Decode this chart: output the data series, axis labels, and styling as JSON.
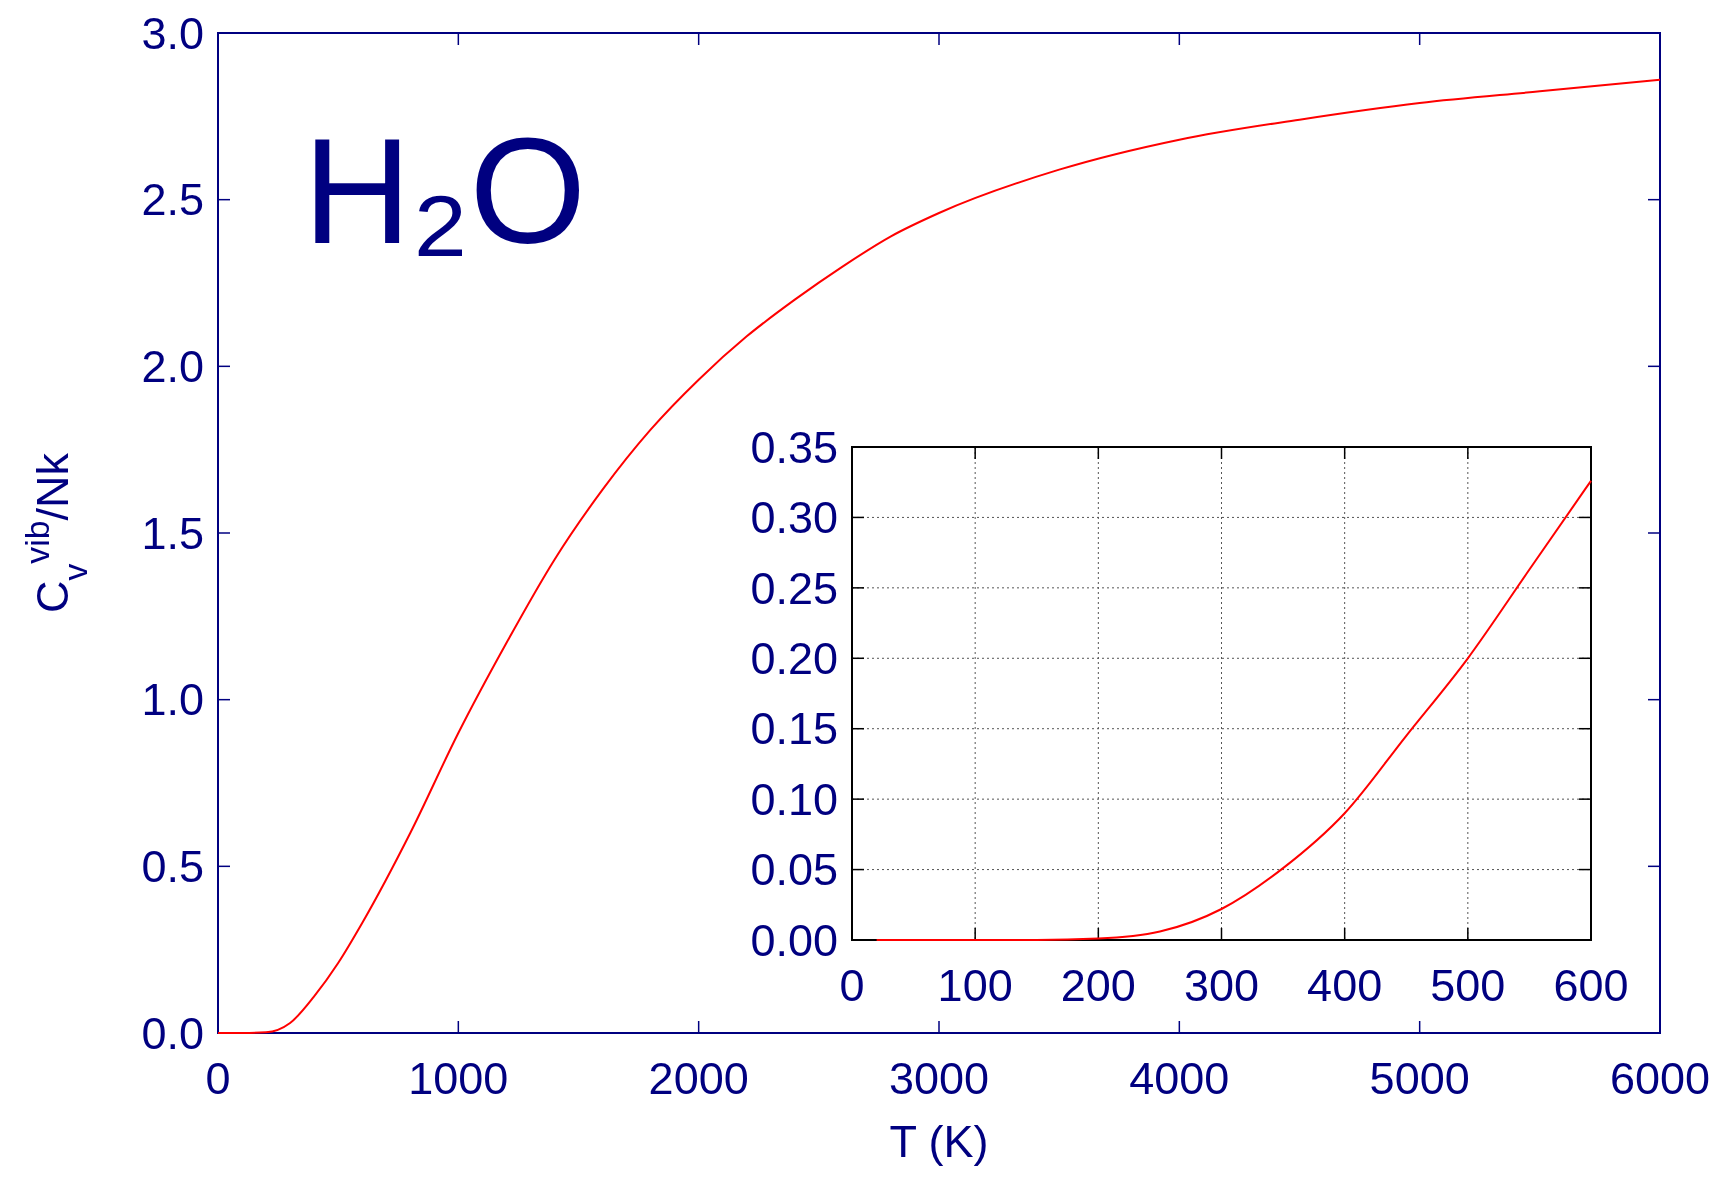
{
  "chart_data": [
    {
      "type": "line",
      "xlabel": "T (K)",
      "ylabel": "C$_{v}$$^{vib}$/Nk",
      "annotations": [
        "H₂O"
      ],
      "xlim": [
        0,
        6000
      ],
      "xticks": [
        0,
        1000,
        2000,
        3000,
        4000,
        5000,
        6000
      ],
      "ylim": [
        0,
        3
      ],
      "yticks": [
        {
          "value": 0,
          "label": "0.0"
        },
        {
          "value": 0.5,
          "label": "0.5"
        },
        {
          "value": 1,
          "label": "1.0"
        },
        {
          "value": 1.5,
          "label": "1.5"
        },
        {
          "value": 2,
          "label": "2.0"
        },
        {
          "value": 2.5,
          "label": "2.5"
        },
        {
          "value": 3,
          "label": "3.0"
        }
      ],
      "grid": false,
      "series": [
        {
          "color": "#ff0000",
          "x": [
            0,
            100,
            200,
            300,
            400,
            500,
            600,
            800,
            1000,
            1200,
            1400,
            1600,
            1800,
            2000,
            2200,
            2400,
            2600,
            2800,
            3000,
            3500,
            4000,
            4500,
            5000,
            5500,
            6000
          ],
          "values": [
            0,
            0,
            0.002,
            0.03,
            0.11,
            0.21,
            0.33,
            0.6,
            0.9,
            1.17,
            1.42,
            1.63,
            1.81,
            1.96,
            2.09,
            2.2,
            2.3,
            2.39,
            2.46,
            2.59,
            2.68,
            2.74,
            2.79,
            2.825,
            2.86
          ]
        }
      ]
    },
    {
      "type": "line",
      "xlim": [
        0,
        600
      ],
      "xticks": [
        0,
        100,
        200,
        300,
        400,
        500,
        600
      ],
      "ylim": [
        0,
        0.35
      ],
      "yticks": [
        {
          "value": 0,
          "label": "0.00"
        },
        {
          "value": 0.05,
          "label": "0.05"
        },
        {
          "value": 0.1,
          "label": "0.10"
        },
        {
          "value": 0.15,
          "label": "0.15"
        },
        {
          "value": 0.2,
          "label": "0.20"
        },
        {
          "value": 0.25,
          "label": "0.25"
        },
        {
          "value": 0.3,
          "label": "0.30"
        },
        {
          "value": 0.35,
          "label": "0.35"
        }
      ],
      "grid": true,
      "series": [
        {
          "color": "#ff0000",
          "x": [
            20,
            100,
            150,
            200,
            250,
            300,
            350,
            400,
            450,
            500,
            550,
            600
          ],
          "values": [
            0,
            0,
            0,
            0.001,
            0.006,
            0.022,
            0.051,
            0.09,
            0.145,
            0.2,
            0.263,
            0.326
          ]
        }
      ]
    }
  ]
}
